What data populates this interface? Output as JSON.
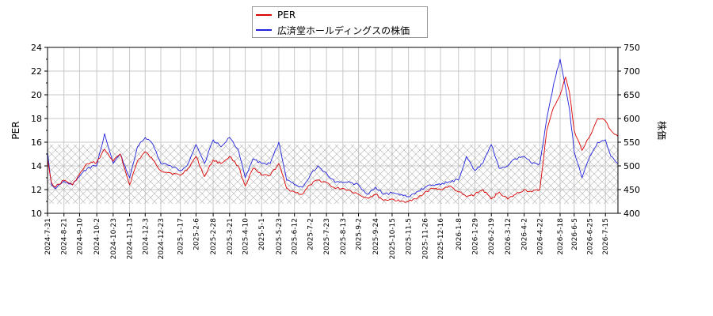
{
  "chart_data": {
    "type": "line",
    "legend": {
      "placement": "top-center"
    },
    "grid": true,
    "hatched_band": {
      "axis": "left",
      "range": [
        10.8,
        15.8
      ]
    },
    "left_axis": {
      "label": "PER",
      "ylim": [
        10,
        24
      ],
      "ticks": [
        10,
        12,
        14,
        16,
        18,
        20,
        22,
        24
      ]
    },
    "right_axis": {
      "label": "株価",
      "ylim": [
        400,
        750
      ],
      "ticks": [
        400,
        450,
        500,
        550,
        600,
        650,
        700,
        750
      ]
    },
    "x_tick_labels": [
      "2024-7-31",
      "2024-8-21",
      "2024-9-10",
      "2024-10-2",
      "2024-10-23",
      "2024-11-13",
      "2024-12-3",
      "2024-12-23",
      "2025-1-17",
      "2025-2-6",
      "2025-2-28",
      "2025-3-21",
      "2025-4-10",
      "2025-5-1",
      "2025-5-23",
      "2025-6-12",
      "2025-7-2",
      "2025-7-23",
      "2025-8-13",
      "2025-9-2",
      "2025-9-24",
      "2025-10-15",
      "2025-11-5",
      "2025-11-26",
      "2025-12-16",
      "2026-1-8",
      "2026-1-29",
      "2026-2-19",
      "2026-3-12",
      "2026-4-2",
      "2026-4-22",
      "2026-5-18",
      "2026-6-5",
      "2026-6-25",
      "2026-7-15"
    ],
    "series": [
      {
        "name": "PER",
        "color": "#dd0000",
        "axis": "left",
        "x": [
          "2024-7-31",
          "2024-8-5",
          "2024-8-10",
          "2024-8-21",
          "2024-9-1",
          "2024-9-10",
          "2024-9-20",
          "2024-10-2",
          "2024-10-12",
          "2024-10-23",
          "2024-11-1",
          "2024-11-13",
          "2024-11-23",
          "2024-12-3",
          "2024-12-13",
          "2024-12-23",
          "2025-1-5",
          "2025-1-17",
          "2025-1-27",
          "2025-2-6",
          "2025-2-17",
          "2025-2-28",
          "2025-3-10",
          "2025-3-21",
          "2025-4-1",
          "2025-4-10",
          "2025-4-20",
          "2025-5-1",
          "2025-5-12",
          "2025-5-23",
          "2025-6-2",
          "2025-6-12",
          "2025-6-22",
          "2025-7-2",
          "2025-7-12",
          "2025-7-23",
          "2025-8-3",
          "2025-8-13",
          "2025-8-23",
          "2025-9-2",
          "2025-9-13",
          "2025-9-24",
          "2025-10-4",
          "2025-10-15",
          "2025-10-25",
          "2025-11-5",
          "2025-11-15",
          "2025-11-26",
          "2025-12-6",
          "2025-12-16",
          "2025-12-27",
          "2026-1-8",
          "2026-1-18",
          "2026-1-29",
          "2026-2-8",
          "2026-2-19",
          "2026-3-1",
          "2026-3-12",
          "2026-3-22",
          "2026-4-2",
          "2026-4-12",
          "2026-4-22",
          "2026-5-1",
          "2026-5-10",
          "2026-5-18",
          "2026-5-25",
          "2026-5-30",
          "2026-6-5",
          "2026-6-15",
          "2026-6-25",
          "2026-7-5",
          "2026-7-15",
          "2026-7-22",
          "2026-7-31"
        ],
        "values": [
          14.6,
          12.6,
          12.2,
          12.8,
          12.4,
          13.3,
          14.2,
          14.3,
          15.4,
          14.4,
          15.0,
          12.4,
          14.4,
          15.2,
          14.5,
          13.6,
          13.4,
          13.2,
          13.8,
          14.8,
          13.1,
          14.5,
          14.2,
          14.8,
          14.0,
          12.3,
          13.8,
          13.2,
          13.2,
          14.2,
          12.1,
          11.8,
          11.6,
          12.4,
          12.8,
          12.6,
          12.1,
          12.1,
          11.9,
          11.6,
          11.3,
          11.6,
          11.1,
          11.2,
          11.0,
          11.0,
          11.2,
          11.8,
          12.1,
          12.0,
          12.3,
          11.8,
          11.4,
          11.6,
          12.0,
          11.2,
          11.8,
          11.2,
          11.6,
          12.0,
          11.8,
          12.0,
          17.0,
          19.0,
          20.0,
          21.5,
          20.2,
          17.0,
          15.3,
          16.5,
          18.0,
          17.8,
          17.0,
          16.5
        ]
      },
      {
        "name": "広済堂ホールディングスの株価",
        "color": "#2222dd",
        "axis": "right",
        "x": [
          "2024-7-31",
          "2024-8-5",
          "2024-8-10",
          "2024-8-21",
          "2024-9-1",
          "2024-9-10",
          "2024-9-20",
          "2024-10-2",
          "2024-10-12",
          "2024-10-23",
          "2024-11-1",
          "2024-11-13",
          "2024-11-23",
          "2024-12-3",
          "2024-12-13",
          "2024-12-23",
          "2025-1-5",
          "2025-1-17",
          "2025-1-27",
          "2025-2-6",
          "2025-2-17",
          "2025-2-28",
          "2025-3-10",
          "2025-3-21",
          "2025-4-1",
          "2025-4-10",
          "2025-4-20",
          "2025-5-1",
          "2025-5-12",
          "2025-5-23",
          "2025-6-2",
          "2025-6-12",
          "2025-6-22",
          "2025-7-2",
          "2025-7-12",
          "2025-7-23",
          "2025-8-3",
          "2025-8-13",
          "2025-8-23",
          "2025-9-2",
          "2025-9-13",
          "2025-9-24",
          "2025-10-4",
          "2025-10-15",
          "2025-10-25",
          "2025-11-5",
          "2025-11-15",
          "2025-11-26",
          "2025-12-6",
          "2025-12-16",
          "2025-12-27",
          "2026-1-8",
          "2026-1-18",
          "2026-1-29",
          "2026-2-8",
          "2026-2-19",
          "2026-3-1",
          "2026-3-12",
          "2026-3-22",
          "2026-4-2",
          "2026-4-12",
          "2026-4-22",
          "2026-5-1",
          "2026-5-10",
          "2026-5-18",
          "2026-5-25",
          "2026-5-30",
          "2026-6-5",
          "2026-6-15",
          "2026-6-25",
          "2026-7-5",
          "2026-7-15",
          "2026-7-22",
          "2026-7-31"
        ],
        "values": [
          530,
          460,
          452,
          468,
          460,
          478,
          495,
          500,
          568,
          505,
          525,
          475,
          540,
          560,
          545,
          505,
          500,
          490,
          505,
          545,
          505,
          555,
          540,
          560,
          535,
          475,
          515,
          505,
          505,
          550,
          470,
          460,
          455,
          480,
          500,
          485,
          465,
          465,
          465,
          460,
          440,
          455,
          440,
          443,
          438,
          435,
          445,
          455,
          460,
          460,
          467,
          470,
          520,
          490,
          505,
          545,
          495,
          500,
          515,
          520,
          505,
          505,
          600,
          675,
          725,
          665,
          620,
          530,
          475,
          520,
          550,
          555,
          520,
          505
        ]
      }
    ]
  }
}
